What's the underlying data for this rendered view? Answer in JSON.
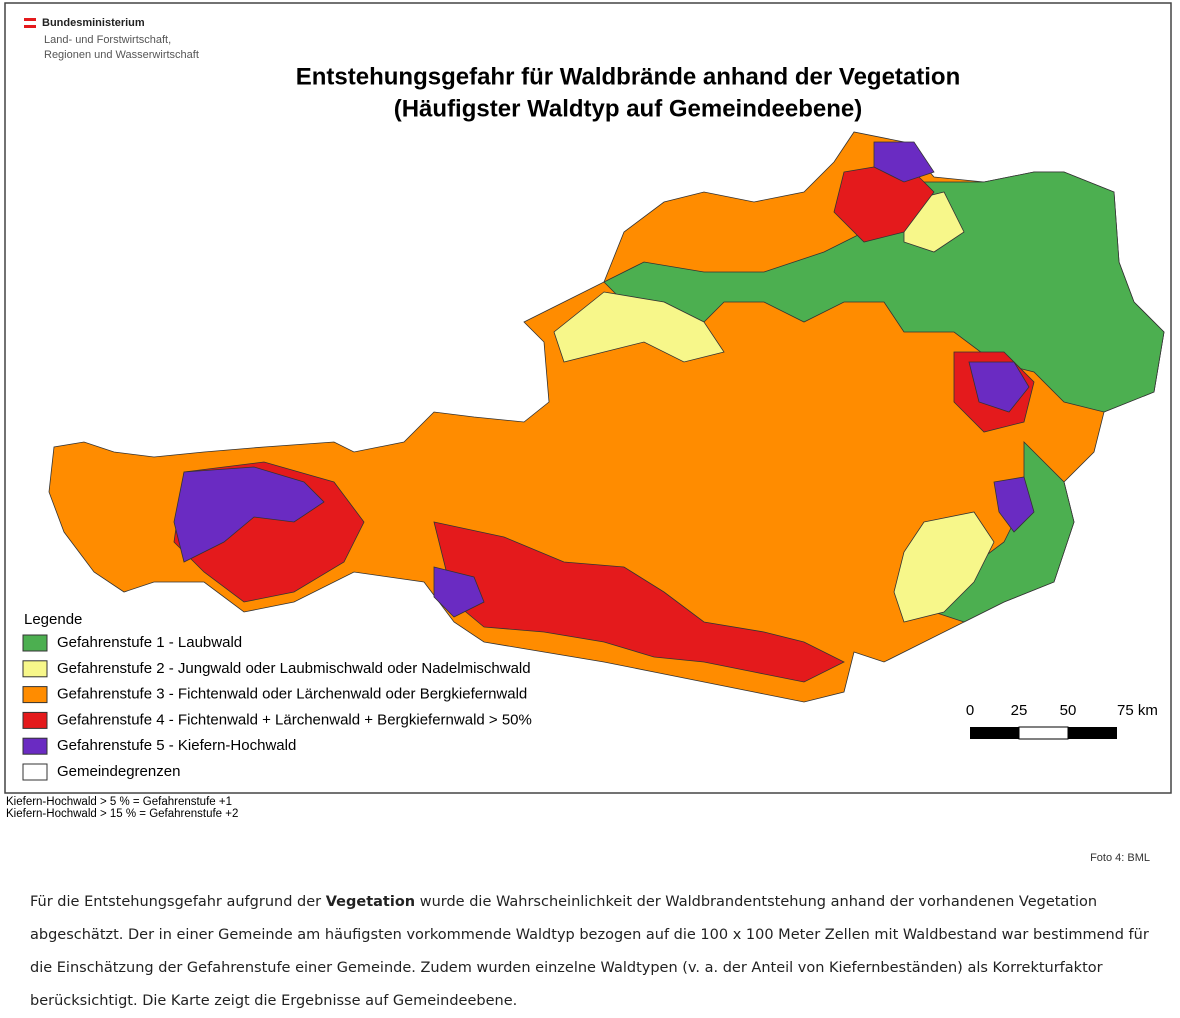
{
  "logo": {
    "lines": [
      "Bundesministerium",
      "Land- und Forstwirtschaft,",
      "Regionen und Wasserwirtschaft"
    ]
  },
  "title": {
    "lines": [
      "Entstehungsgefahr für Waldbrände anhand der Vegetation",
      "(Häufigster Waldtyp auf Gemeindeebene)"
    ]
  },
  "legend": {
    "title": "Legende",
    "items": [
      {
        "label": "Gefahrenstufe 1 - Laubwald",
        "color": "#4caf50"
      },
      {
        "label": "Gefahrenstufe 2 - Jungwald oder Laubmischwald oder Nadelmischwald",
        "color": "#f7f78a"
      },
      {
        "label": "Gefahrenstufe 3 - Fichtenwald oder Lärchenwald oder Bergkiefernwald",
        "color": "#ff8c00"
      },
      {
        "label": "Gefahrenstufe 4 - Fichtenwald + Lärchenwald + Bergkiefernwald > 50%",
        "color": "#e41a1c"
      },
      {
        "label": "Gefahrenstufe 5 - Kiefern-Hochwald",
        "color": "#6a2bc2"
      },
      {
        "label": "Gemeindegrenzen",
        "color": "#ffffff"
      }
    ]
  },
  "scale": {
    "labels": [
      "0",
      "25",
      "50",
      "75 km"
    ]
  },
  "footnotes": [
    "Kiefern-Hochwald > 5 % = Gefahrenstufe +1",
    "Kiefern-Hochwald > 15 % = Gefahrenstufe +2"
  ],
  "credit": "Foto 4: BML",
  "paragraph": {
    "before": "Für die Entstehungsgefahr aufgrund der ",
    "bold": "Vegetation",
    "after": " wurde die Wahrscheinlichkeit der Waldbrandentstehung anhand der vorhandenen Vegetation abgeschätzt. Der in einer Gemeinde am häufigsten vorkommende Waldtyp bezogen auf die 100 x 100 Meter Zellen mit Waldbestand war bestimmend für die Einschätzung der Gefahrenstufe einer Gemeinde. Zudem wurden einzelne Waldtypen (v. a. der Anteil von Kiefernbeständen) als Korrekturfaktor berücksichtigt. Die Karte zeigt die Ergebnisse auf Gemeindeebene."
  }
}
